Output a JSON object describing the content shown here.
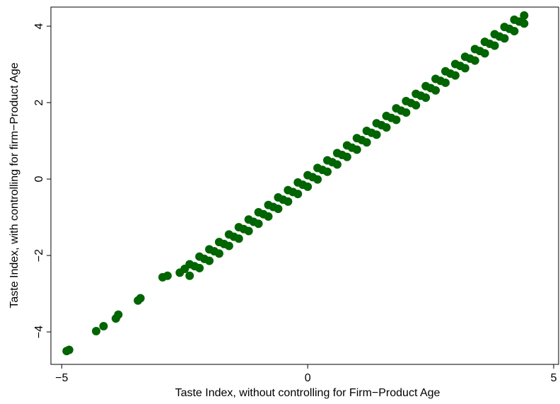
{
  "chart_data": {
    "type": "scatter",
    "xlabel": "Taste Index, without controlling for Firm−Product Age",
    "ylabel": "Taste Index, with controlling for firm−Product Age",
    "color": "#006400",
    "xlim": [
      -5.22,
      5.1
    ],
    "ylim": [
      -4.85,
      4.5
    ],
    "xticks": [
      {
        "value": -5,
        "label": "−5"
      },
      0,
      5
    ],
    "yticks": [
      {
        "value": -4,
        "label": "−4"
      },
      {
        "value": -2,
        "label": "−2"
      },
      0,
      2,
      4
    ],
    "x": [
      -4.9,
      -4.85,
      -4.3,
      -4.15,
      -3.9,
      -3.85,
      -3.45,
      -3.4,
      -2.95,
      -2.85,
      -2.6,
      -2.5,
      -2.4,
      -2.2,
      -2.0,
      -1.8,
      -1.6,
      -1.4,
      -1.2,
      -1.0,
      -0.8,
      -0.6,
      -0.4,
      -0.2,
      0,
      0.2,
      0.4,
      0.6,
      0.8,
      1.0,
      1.2,
      1.4,
      1.6,
      1.8,
      2.0,
      2.2,
      2.4,
      2.6,
      2.8,
      3.0,
      3.2,
      3.4,
      3.6,
      3.8,
      4.0,
      4.2,
      4.4,
      -2.3,
      -2.1,
      -1.9,
      -1.7,
      -1.5,
      -1.3,
      -1.1,
      -0.9,
      -0.7,
      -0.5,
      -0.3,
      -0.1,
      0.1,
      0.3,
      0.5,
      0.7,
      0.9,
      1.1,
      1.3,
      1.5,
      1.7,
      1.9,
      2.1,
      2.3,
      2.5,
      2.7,
      2.9,
      3.1,
      3.3,
      3.5,
      3.7,
      3.9,
      4.1,
      4.3,
      -2.4,
      -2.2,
      -2.0,
      -1.8,
      -1.6,
      -1.4,
      -1.2,
      -1.0,
      -0.8,
      -0.6,
      -0.4,
      -0.2,
      0,
      0.2,
      0.4,
      0.6,
      0.8,
      1.0,
      1.2,
      1.4,
      1.6,
      1.8,
      2.0,
      2.2,
      2.4,
      2.6,
      2.8,
      3.0,
      3.2,
      3.4,
      3.6,
      3.8,
      4.0,
      4.2,
      4.4
    ],
    "values": [
      -4.5,
      -4.47,
      -3.98,
      -3.85,
      -3.65,
      -3.55,
      -3.18,
      -3.12,
      -2.57,
      -2.53,
      -2.45,
      -2.35,
      -2.23,
      -2.03,
      -1.84,
      -1.65,
      -1.45,
      -1.26,
      -1.06,
      -0.87,
      -0.68,
      -0.48,
      -0.29,
      -0.09,
      0.1,
      0.29,
      0.49,
      0.68,
      0.88,
      1.07,
      1.26,
      1.46,
      1.65,
      1.85,
      2.04,
      2.23,
      2.43,
      2.62,
      2.82,
      3.01,
      3.2,
      3.4,
      3.59,
      3.79,
      3.98,
      4.17,
      4.28,
      -2.28,
      -2.09,
      -1.89,
      -1.7,
      -1.51,
      -1.31,
      -1.12,
      -0.92,
      -0.73,
      -0.54,
      -0.34,
      -0.15,
      0.05,
      0.24,
      0.44,
      0.63,
      0.82,
      1.02,
      1.21,
      1.41,
      1.6,
      1.79,
      1.99,
      2.18,
      2.38,
      2.57,
      2.76,
      2.96,
      3.15,
      3.35,
      3.54,
      3.73,
      3.93,
      4.12,
      -2.53,
      -2.33,
      -2.14,
      -1.95,
      -1.75,
      -1.56,
      -1.36,
      -1.17,
      -0.98,
      -0.78,
      -0.59,
      -0.39,
      -0.2,
      -0.01,
      0.19,
      0.38,
      0.58,
      0.77,
      0.96,
      1.16,
      1.35,
      1.55,
      1.74,
      1.93,
      2.13,
      2.32,
      2.52,
      2.71,
      2.9,
      3.1,
      3.29,
      3.49,
      3.68,
      3.87,
      4.07
    ]
  }
}
